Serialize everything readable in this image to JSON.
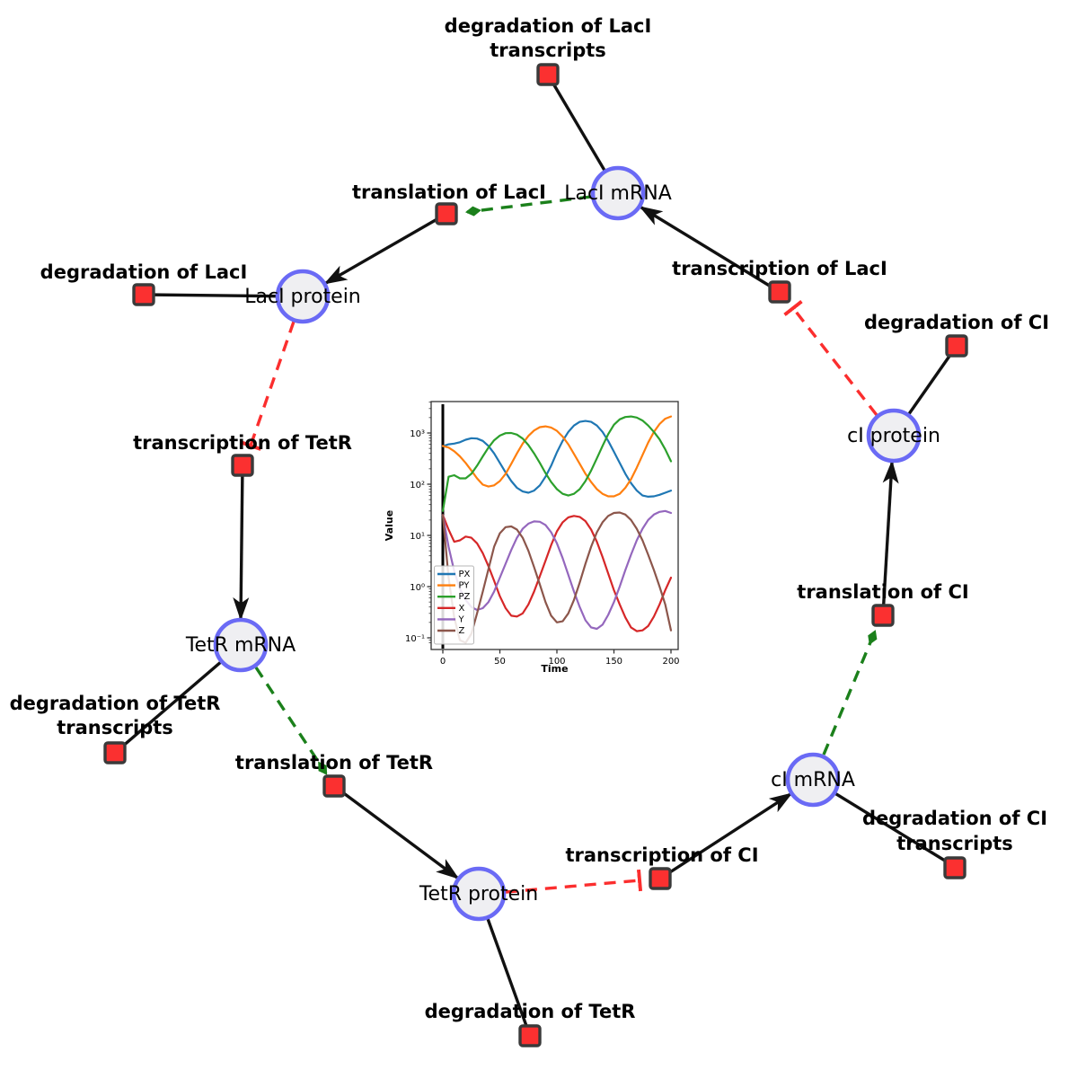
{
  "figure": {
    "description": "Repressilator gene regulatory network with simulation inset",
    "colors": {
      "species_fill": "#efeff2",
      "species_border": "#6a6af5",
      "reaction_fill": "#fb3030",
      "reaction_border": "#3a3a3a",
      "edge_solid": "#111111",
      "edge_activation": "#1b801b",
      "edge_inhibition": "#fb2e2e"
    }
  },
  "diagram": {
    "species": [
      {
        "id": "laci-mrna",
        "label": "LacI mRNA"
      },
      {
        "id": "laci-protein",
        "label": "LacI protein"
      },
      {
        "id": "tetr-mrna",
        "label": "TetR mRNA"
      },
      {
        "id": "tetr-protein",
        "label": "TetR protein"
      },
      {
        "id": "ci-mrna",
        "label": "cI mRNA"
      },
      {
        "id": "ci-protein",
        "label": "cI protein"
      }
    ],
    "reactions": [
      {
        "id": "degradation-laci-transcripts",
        "lines": [
          "degradation of LacI",
          "transcripts"
        ]
      },
      {
        "id": "translation-laci",
        "lines": [
          "translation of LacI"
        ]
      },
      {
        "id": "degradation-laci",
        "lines": [
          "degradation of LacI"
        ]
      },
      {
        "id": "transcription-tetr",
        "lines": [
          "transcription of TetR"
        ]
      },
      {
        "id": "degradation-tetr-transcripts",
        "lines": [
          "degradation of TetR",
          "transcripts"
        ]
      },
      {
        "id": "translation-tetr",
        "lines": [
          "translation of TetR"
        ]
      },
      {
        "id": "degradation-tetr",
        "lines": [
          "degradation of TetR"
        ]
      },
      {
        "id": "transcription-ci",
        "lines": [
          "transcription of CI"
        ]
      },
      {
        "id": "degradation-ci-transcripts",
        "lines": [
          "degradation of CI",
          "transcripts"
        ]
      },
      {
        "id": "translation-ci",
        "lines": [
          "translation of CI"
        ]
      },
      {
        "id": "degradation-ci",
        "lines": [
          "degradation of CI"
        ]
      },
      {
        "id": "transcription-laci",
        "lines": [
          "transcription of LacI"
        ]
      }
    ],
    "edges": [
      {
        "from": "LacI mRNA",
        "to": "degradation of LacI transcripts",
        "type": "consumption"
      },
      {
        "from": "translation of LacI",
        "to": "LacI protein",
        "type": "production"
      },
      {
        "from": "LacI protein",
        "to": "degradation of LacI",
        "type": "consumption"
      },
      {
        "from": "LacI protein",
        "to": "transcription of TetR",
        "type": "inhibition"
      },
      {
        "from": "transcription of TetR",
        "to": "TetR mRNA",
        "type": "production"
      },
      {
        "from": "TetR mRNA",
        "to": "degradation of TetR transcripts",
        "type": "consumption"
      },
      {
        "from": "TetR mRNA",
        "to": "translation of TetR",
        "type": "activation"
      },
      {
        "from": "translation of TetR",
        "to": "TetR protein",
        "type": "production"
      },
      {
        "from": "TetR protein",
        "to": "degradation of TetR",
        "type": "consumption"
      },
      {
        "from": "TetR protein",
        "to": "transcription of CI",
        "type": "inhibition"
      },
      {
        "from": "transcription of CI",
        "to": "cI mRNA",
        "type": "production"
      },
      {
        "from": "cI mRNA",
        "to": "degradation of CI transcripts",
        "type": "consumption"
      },
      {
        "from": "cI mRNA",
        "to": "translation of CI",
        "type": "activation"
      },
      {
        "from": "translation of CI",
        "to": "cI protein",
        "type": "production"
      },
      {
        "from": "cI protein",
        "to": "degradation of CI",
        "type": "consumption"
      },
      {
        "from": "cI protein",
        "to": "transcription of LacI",
        "type": "inhibition"
      },
      {
        "from": "transcription of LacI",
        "to": "LacI mRNA",
        "type": "production"
      },
      {
        "from": "LacI mRNA",
        "to": "translation of LacI",
        "type": "activation"
      }
    ]
  },
  "chart_data": {
    "type": "line",
    "title": "",
    "xlabel": "Time",
    "ylabel": "Value",
    "yscale": "log",
    "xlim": [
      -10,
      206
    ],
    "ylim": [
      0.08,
      4000
    ],
    "xticks": [
      0,
      50,
      100,
      150,
      200
    ],
    "ytick_values": [
      0.1,
      1,
      10,
      100,
      1000
    ],
    "ytick_labels": [
      "10⁻¹",
      "10⁰",
      "10¹",
      "10²",
      "10³"
    ],
    "legend_position": "lower left",
    "grid": false,
    "x": [
      0,
      5,
      10,
      15,
      20,
      25,
      30,
      35,
      40,
      45,
      50,
      55,
      60,
      65,
      70,
      75,
      80,
      85,
      90,
      95,
      100,
      105,
      110,
      115,
      120,
      125,
      130,
      135,
      140,
      145,
      150,
      155,
      160,
      165,
      170,
      175,
      180,
      185,
      190,
      195,
      200
    ],
    "series": [
      {
        "name": "PX",
        "color": "#1f77b4",
        "values": [
          550,
          600,
          620,
          660,
          740,
          790,
          780,
          700,
          560,
          400,
          260,
          170,
          115,
          85,
          72,
          68,
          75,
          95,
          140,
          230,
          420,
          700,
          1050,
          1400,
          1650,
          1720,
          1650,
          1400,
          1050,
          700,
          430,
          260,
          160,
          105,
          75,
          60,
          57,
          58,
          62,
          68,
          75
        ]
      },
      {
        "name": "PY",
        "color": "#ff7f0e",
        "values": [
          560,
          520,
          440,
          350,
          260,
          185,
          130,
          98,
          90,
          95,
          115,
          160,
          250,
          400,
          620,
          880,
          1120,
          1300,
          1350,
          1280,
          1100,
          850,
          600,
          390,
          250,
          160,
          110,
          80,
          65,
          58,
          58,
          65,
          85,
          125,
          210,
          370,
          650,
          1050,
          1500,
          1900,
          2100
        ]
      },
      {
        "name": "PZ",
        "color": "#2ca02c",
        "values": [
          30,
          140,
          150,
          130,
          130,
          160,
          230,
          350,
          520,
          720,
          890,
          990,
          1000,
          930,
          780,
          580,
          400,
          260,
          165,
          110,
          80,
          65,
          60,
          65,
          80,
          115,
          185,
          320,
          560,
          950,
          1450,
          1850,
          2050,
          2100,
          2000,
          1750,
          1400,
          1050,
          750,
          480,
          280
        ]
      },
      {
        "name": "X",
        "color": "#d62728",
        "values": [
          25,
          13,
          7.5,
          8,
          9.5,
          9,
          7,
          4.5,
          2.5,
          1.3,
          0.65,
          0.38,
          0.27,
          0.26,
          0.3,
          0.45,
          0.8,
          1.6,
          3.2,
          6.5,
          12,
          18,
          22.5,
          24,
          23,
          19,
          13,
          7.5,
          3.8,
          1.8,
          0.85,
          0.45,
          0.25,
          0.16,
          0.135,
          0.14,
          0.17,
          0.26,
          0.45,
          0.85,
          1.5
        ]
      },
      {
        "name": "Y",
        "color": "#9467bd",
        "values": [
          25,
          6,
          2,
          0.9,
          0.55,
          0.4,
          0.35,
          0.38,
          0.5,
          0.8,
          1.5,
          2.8,
          5.2,
          9,
          13.5,
          17,
          18.8,
          18.5,
          16,
          11.5,
          7,
          3.6,
          1.7,
          0.8,
          0.4,
          0.22,
          0.16,
          0.15,
          0.18,
          0.28,
          0.5,
          1,
          2.1,
          4.2,
          8,
          13.5,
          20,
          25.5,
          28.8,
          30,
          27.5
        ]
      },
      {
        "name": "Z",
        "color": "#8c564b",
        "values": [
          25,
          1.5,
          0.25,
          0.09,
          0.08,
          0.12,
          0.3,
          0.8,
          2.2,
          6,
          11,
          14.5,
          15,
          13,
          9,
          5,
          2.4,
          1.1,
          0.5,
          0.27,
          0.2,
          0.21,
          0.3,
          0.55,
          1.2,
          2.8,
          6,
          11.5,
          18,
          24,
          27.5,
          28,
          25.5,
          20,
          13.5,
          8,
          4.2,
          2.1,
          1,
          0.45,
          0.14
        ]
      }
    ],
    "annotations": [
      {
        "type": "vline",
        "x": 0,
        "color": "#000000"
      }
    ]
  }
}
